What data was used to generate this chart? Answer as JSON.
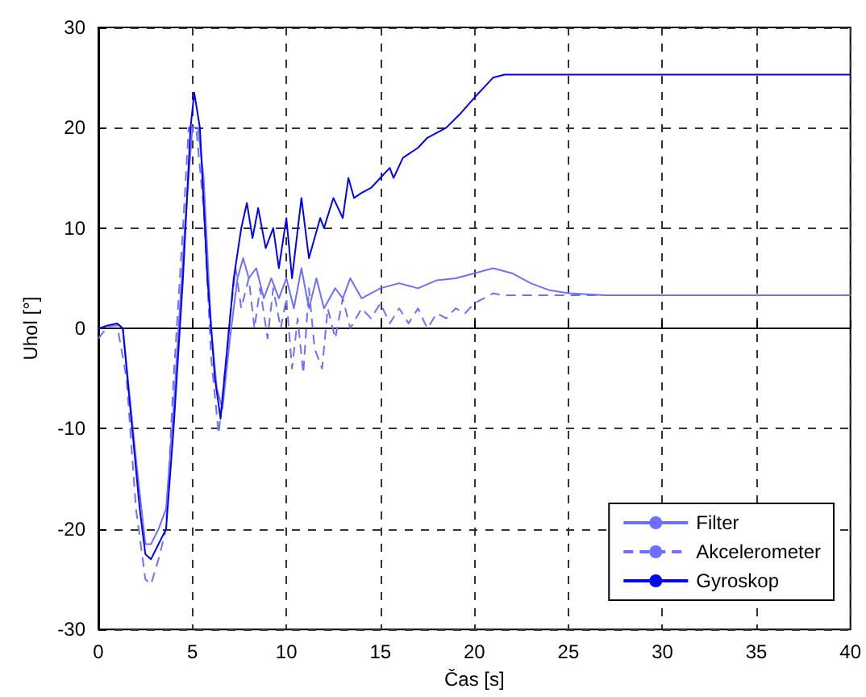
{
  "chart_data": {
    "type": "line",
    "xlabel": "Čas [s]",
    "ylabel": "Uhol [°]",
    "xlim": [
      0,
      40
    ],
    "xticks": [
      0,
      5,
      10,
      15,
      20,
      25,
      30,
      35,
      40
    ],
    "ylim": [
      -30,
      30
    ],
    "yticks": [
      -30,
      -20,
      -10,
      0,
      10,
      20,
      30
    ],
    "grid": true,
    "legend": "bottom right",
    "series": [
      {
        "name": "Filter",
        "color": "#6f6fff",
        "line_style": "solid",
        "x": [
          0,
          1,
          1.3,
          2,
          2.5,
          2.8,
          3.2,
          3.6,
          4,
          4.6,
          5,
          5.3,
          5.6,
          6,
          6.3,
          6.6,
          7,
          7.4,
          7.7,
          8,
          8.4,
          8.8,
          9.2,
          9.6,
          10,
          10.4,
          10.8,
          11.2,
          11.6,
          12,
          12.6,
          13,
          13.4,
          14,
          14.5,
          15,
          16,
          17,
          18,
          19,
          20,
          21,
          22,
          23,
          24,
          25,
          27,
          40
        ],
        "values": [
          0,
          0.5,
          0,
          -13,
          -21.5,
          -21.5,
          -20,
          -18,
          -8,
          10,
          20,
          20,
          15,
          0,
          -6,
          -8,
          -1,
          5,
          7,
          5,
          6,
          3,
          5,
          3,
          5,
          2,
          6,
          2,
          5,
          2,
          4,
          3,
          5,
          3,
          3.5,
          4,
          4.5,
          4,
          4.8,
          5,
          5.5,
          6,
          5.5,
          4.5,
          3.8,
          3.5,
          3.3,
          3.3
        ]
      },
      {
        "name": "Akcelerometer",
        "color": "#6f6fff",
        "line_style": "dashed",
        "x": [
          0,
          0.5,
          1,
          1.5,
          2,
          2.5,
          2.8,
          3.2,
          3.6,
          4,
          4.5,
          4.8,
          5.2,
          5.6,
          6,
          6.4,
          6.7,
          7,
          7.3,
          7.6,
          8,
          8.3,
          8.6,
          9,
          9.3,
          9.7,
          10,
          10.3,
          10.6,
          10.9,
          11.2,
          11.5,
          11.9,
          12.2,
          12.6,
          13,
          13.4,
          14,
          14.5,
          15,
          15.5,
          16,
          16.5,
          17,
          17.5,
          18,
          18.5,
          19,
          19.5,
          20,
          20.5,
          21,
          21.5,
          40
        ],
        "values": [
          -1,
          0.2,
          0.3,
          -5,
          -18,
          -25,
          -25.5,
          -23,
          -20,
          -5,
          10,
          20,
          20,
          12,
          -3,
          -10.5,
          -5,
          1,
          6,
          2,
          5,
          0,
          4,
          -1,
          4,
          0,
          3,
          -4,
          1,
          -4.5,
          4,
          -2,
          -4,
          2,
          -1,
          3,
          0,
          2,
          1,
          2.5,
          0.5,
          2,
          0.5,
          2,
          0,
          1.5,
          1,
          2,
          1.5,
          2.5,
          3,
          3.5,
          3.3,
          3.3
        ]
      },
      {
        "name": "Gyroskop",
        "color": "#0000ff",
        "line_style": "solid",
        "x": [
          0,
          0.5,
          1,
          1.3,
          1.8,
          2.2,
          2.5,
          2.8,
          3.2,
          3.6,
          4,
          4.5,
          4.9,
          5.1,
          5.4,
          5.8,
          6.2,
          6.5,
          6.8,
          7.2,
          7.6,
          7.9,
          8.2,
          8.5,
          8.9,
          9.3,
          9.6,
          10,
          10.3,
          10.8,
          11.2,
          11.8,
          12,
          12.5,
          13,
          13.3,
          13.6,
          14,
          14.5,
          15,
          15.5,
          15.7,
          16.2,
          17,
          17.5,
          18.5,
          19.3,
          20,
          20.5,
          21,
          21.6,
          40
        ],
        "values": [
          0,
          0.3,
          0.5,
          0,
          -10,
          -18,
          -22.5,
          -23,
          -21.5,
          -20,
          -10,
          5,
          20,
          23.5,
          20,
          5,
          -5,
          -9,
          -3,
          5,
          10,
          12.5,
          9,
          12,
          8,
          10,
          6,
          11,
          5,
          13,
          7,
          11,
          10,
          13,
          11,
          15,
          13,
          13.5,
          14,
          15,
          16,
          15,
          17,
          18,
          19,
          20,
          21.5,
          23,
          24,
          25,
          25.3,
          25.3
        ]
      }
    ]
  }
}
